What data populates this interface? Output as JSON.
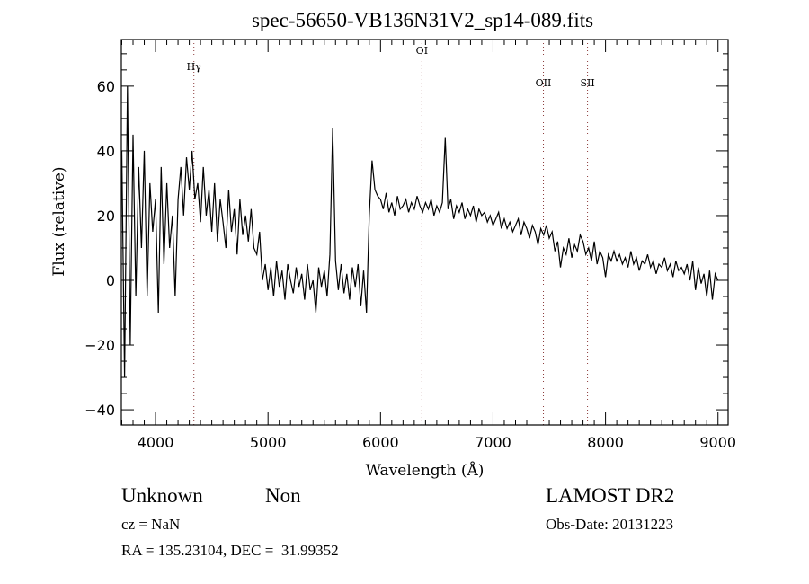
{
  "chart_data": {
    "type": "line",
    "title": "spec-56650-VB136N31V2_sp14-089.fits",
    "xlabel": "Wavelength (Å)",
    "ylabel": "Flux (relative)",
    "xlim": [
      3696,
      9090
    ],
    "ylim": [
      -44.7,
      74.4
    ],
    "x_ticks": [
      4000,
      5000,
      6000,
      7000,
      8000,
      9000
    ],
    "y_ticks": [
      -40,
      -20,
      0,
      20,
      40,
      60
    ],
    "x_tick_labels": [
      "4000",
      "5000",
      "6000",
      "7000",
      "8000",
      "9000"
    ],
    "y_tick_labels": [
      "−40",
      "−20",
      "0",
      "20",
      "40",
      "60"
    ],
    "grid": false,
    "lines": [
      {
        "label": "Hγ",
        "wavelength": 4341,
        "label_flux": 65
      },
      {
        "label": "OI",
        "wavelength": 6368,
        "label_flux": 70
      },
      {
        "label": "OII",
        "wavelength": 7448,
        "label_flux": 60
      },
      {
        "label": "SII",
        "wavelength": 7840,
        "label_flux": 60
      }
    ],
    "series": [
      {
        "name": "spectrum",
        "x_start": 3700,
        "x_step": 25,
        "flux": [
          40,
          -30,
          60,
          -20,
          45,
          -5,
          35,
          10,
          40,
          -5,
          30,
          15,
          25,
          -10,
          35,
          5,
          30,
          10,
          20,
          -5,
          25,
          35,
          20,
          38,
          28,
          40,
          25,
          30,
          18,
          35,
          20,
          28,
          15,
          30,
          12,
          25,
          18,
          10,
          28,
          15,
          22,
          8,
          25,
          14,
          20,
          12,
          22,
          10,
          8,
          15,
          0,
          5,
          -3,
          4,
          -5,
          6,
          -2,
          3,
          -6,
          5,
          0,
          -4,
          4,
          -2,
          2,
          -6,
          5,
          -3,
          0,
          -10,
          4,
          -2,
          3,
          -5,
          8,
          47,
          6,
          -3,
          5,
          -4,
          2,
          -6,
          4,
          -2,
          5,
          -8,
          3,
          -10,
          20,
          37,
          28,
          26,
          25,
          22,
          27,
          21,
          24,
          20,
          26,
          22,
          23,
          25,
          21,
          24,
          22,
          26,
          23,
          21,
          24,
          22,
          25,
          20,
          23,
          21,
          24,
          44,
          22,
          25,
          19,
          23,
          21,
          24,
          19,
          22,
          20,
          23,
          18,
          22,
          20,
          21,
          18,
          20,
          17,
          19,
          21,
          16,
          19,
          16,
          18,
          15,
          17,
          19,
          14,
          18,
          16,
          13,
          17,
          15,
          11,
          16,
          14,
          17,
          13,
          15,
          9,
          12,
          4,
          10,
          8,
          13,
          7,
          11,
          9,
          14,
          12,
          8,
          10,
          6,
          12,
          5,
          9,
          7,
          1,
          8,
          6,
          9,
          6,
          8,
          5,
          7,
          4,
          9,
          5,
          7,
          3,
          6,
          5,
          8,
          4,
          6,
          2,
          5,
          4,
          7,
          3,
          5,
          1,
          6,
          3,
          4,
          2,
          5,
          0,
          6,
          -3,
          4,
          -1,
          2,
          -5,
          3,
          -6,
          2,
          0
        ]
      }
    ]
  },
  "info": {
    "class": "Unknown",
    "subclass": "Non",
    "survey": "LAMOST DR2",
    "cz": "cz = NaN",
    "obs_date": "Obs-Date: 20131223",
    "radec": "RA = 135.23104, DEC =  31.99352"
  }
}
